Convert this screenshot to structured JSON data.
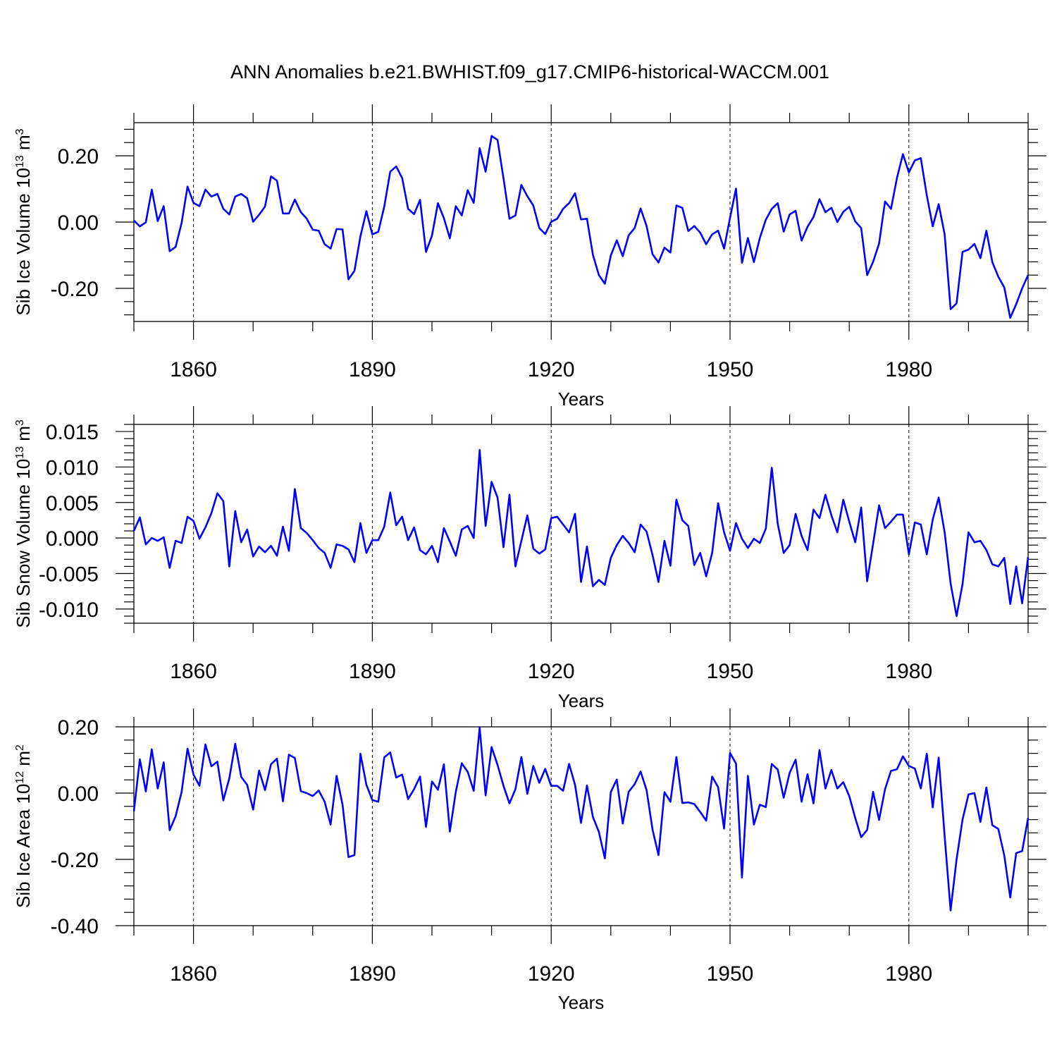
{
  "title": "ANN Anomalies b.e21.BWHIST.f09_g17.CMIP6-historical-WACCM.001",
  "chart_data": [
    {
      "type": "line",
      "title": "ANN Anomalies b.e21.BWHIST.f09_g17.CMIP6-historical-WACCM.001",
      "xlabel": "Years",
      "ylabel": {
        "base": "Sib Ice Volume 10",
        "exp": "13",
        "unit": " m",
        "unit_exp": "3"
      },
      "xlim": [
        1850,
        2000
      ],
      "ylim": [
        -0.3,
        0.3
      ],
      "xticks": [
        1860,
        1890,
        1920,
        1950,
        1980
      ],
      "xtick_labels": [
        "1860",
        "1890",
        "1920",
        "1950",
        "1980"
      ],
      "yticks": [
        -0.2,
        0.0,
        0.2
      ],
      "ytick_labels": [
        "-0.20",
        "0.00",
        "0.20"
      ],
      "grid": "dashed vertical lines at major x ticks",
      "color": "#0000ff",
      "series": [
        {
          "name": "Sib Ice Volume",
          "x_start": 1850,
          "x_step": 1,
          "values": [
            0.005,
            -0.013,
            -0.001,
            0.098,
            0.003,
            0.048,
            -0.088,
            -0.075,
            -0.003,
            0.107,
            0.058,
            0.048,
            0.098,
            0.077,
            0.085,
            0.04,
            0.023,
            0.077,
            0.085,
            0.072,
            0.001,
            0.022,
            0.047,
            0.138,
            0.125,
            0.026,
            0.026,
            0.068,
            0.03,
            0.01,
            -0.023,
            -0.026,
            -0.067,
            -0.08,
            -0.021,
            -0.022,
            -0.173,
            -0.147,
            -0.043,
            0.033,
            -0.037,
            -0.029,
            0.047,
            0.152,
            0.168,
            0.133,
            0.04,
            0.024,
            0.067,
            -0.09,
            -0.041,
            0.057,
            0.012,
            -0.049,
            0.048,
            0.02,
            0.096,
            0.058,
            0.223,
            0.152,
            0.26,
            0.248,
            0.132,
            0.01,
            0.02,
            0.112,
            0.078,
            0.05,
            -0.018,
            -0.036,
            0.001,
            0.01,
            0.04,
            0.057,
            0.087,
            0.008,
            0.01,
            -0.099,
            -0.16,
            -0.186,
            -0.101,
            -0.055,
            -0.103,
            -0.04,
            -0.018,
            0.041,
            -0.012,
            -0.097,
            -0.122,
            -0.077,
            -0.092,
            0.05,
            0.043,
            -0.027,
            -0.012,
            -0.032,
            -0.067,
            -0.037,
            -0.026,
            -0.08,
            0.013,
            0.101,
            -0.123,
            -0.048,
            -0.121,
            -0.048,
            0.007,
            0.04,
            0.057,
            -0.029,
            0.023,
            0.034,
            -0.056,
            -0.014,
            0.015,
            0.069,
            0.03,
            0.043,
            0.0,
            0.031,
            0.046,
            0.002,
            -0.018,
            -0.16,
            -0.12,
            -0.065,
            0.062,
            0.04,
            0.133,
            0.205,
            0.15,
            0.186,
            0.193,
            0.081,
            -0.013,
            0.054,
            -0.037,
            -0.263,
            -0.245,
            -0.09,
            -0.083,
            -0.066,
            -0.109,
            -0.026,
            -0.121,
            -0.165,
            -0.197,
            -0.289,
            -0.248,
            -0.2,
            -0.16
          ]
        }
      ]
    },
    {
      "type": "line",
      "xlabel": "Years",
      "ylabel": {
        "base": "Sib Snow Volume 10",
        "exp": "13",
        "unit": " m",
        "unit_exp": "3"
      },
      "xlim": [
        1850,
        2000
      ],
      "ylim": [
        -0.012,
        0.016
      ],
      "xticks": [
        1860,
        1890,
        1920,
        1950,
        1980
      ],
      "xtick_labels": [
        "1860",
        "1890",
        "1920",
        "1950",
        "1980"
      ],
      "yticks": [
        -0.01,
        -0.005,
        0.0,
        0.005,
        0.01,
        0.015
      ],
      "ytick_labels": [
        "-0.010",
        "-0.005",
        "0.000",
        "0.005",
        "0.010",
        "0.015"
      ],
      "grid": "dashed vertical lines at major x ticks",
      "color": "#0000ff",
      "series": [
        {
          "name": "Sib Snow Volume",
          "x_start": 1850,
          "x_step": 1,
          "values": [
            0.001,
            0.0029,
            -0.0009,
            0.0,
            -0.0004,
            0.0001,
            -0.0042,
            -0.0004,
            -0.0007,
            0.003,
            0.0024,
            -0.0001,
            0.0015,
            0.0035,
            0.0063,
            0.0052,
            -0.004,
            0.0038,
            -0.0006,
            0.0012,
            -0.0026,
            -0.0012,
            -0.002,
            -0.0011,
            -0.0025,
            0.0016,
            -0.0018,
            0.0069,
            0.0014,
            0.0007,
            -0.0003,
            -0.0014,
            -0.0021,
            -0.0042,
            -0.0009,
            -0.0011,
            -0.0016,
            -0.0034,
            0.0021,
            -0.0021,
            -0.0003,
            -0.0003,
            0.0016,
            0.0064,
            0.0018,
            0.003,
            -0.0003,
            0.0015,
            -0.0017,
            -0.0023,
            -0.0011,
            -0.0034,
            0.0014,
            -0.0005,
            -0.0025,
            0.0012,
            0.0017,
            0.0,
            0.0124,
            0.0017,
            0.0079,
            0.0057,
            -0.0013,
            0.0061,
            -0.004,
            -0.0004,
            0.0032,
            -0.0015,
            -0.0022,
            -0.0016,
            0.0028,
            0.003,
            0.0019,
            0.0008,
            0.0034,
            -0.0062,
            -0.0012,
            -0.0068,
            -0.0059,
            -0.0066,
            -0.0028,
            -0.001,
            0.0003,
            -0.0007,
            -0.002,
            0.0019,
            0.0009,
            -0.0024,
            -0.0062,
            -0.0004,
            -0.0039,
            0.0054,
            0.0025,
            0.0017,
            -0.0038,
            -0.0021,
            -0.0054,
            -0.0021,
            0.0049,
            0.0008,
            -0.0018,
            0.0021,
            -0.0001,
            -0.0014,
            -0.0001,
            -0.0007,
            0.0013,
            0.0099,
            0.002,
            -0.0021,
            -0.001,
            0.0034,
            0.0003,
            -0.0017,
            0.004,
            0.0028,
            0.0061,
            0.0032,
            0.0008,
            0.0054,
            0.0023,
            -0.0006,
            0.0043,
            -0.0061,
            -0.0008,
            0.0046,
            0.0014,
            0.0023,
            0.0033,
            0.0033,
            -0.0023,
            0.0022,
            0.0019,
            -0.0023,
            0.0026,
            0.0057,
            0.0008,
            -0.0064,
            -0.011,
            -0.0065,
            0.0008,
            -0.0006,
            -0.0004,
            -0.0017,
            -0.0037,
            -0.004,
            -0.0028,
            -0.0093,
            -0.004,
            -0.0092,
            -0.0027
          ]
        }
      ]
    },
    {
      "type": "line",
      "xlabel": "Years",
      "ylabel": {
        "base": "Sib Ice Area 10",
        "exp": "12",
        "unit": " m",
        "unit_exp": "2"
      },
      "xlim": [
        1850,
        2000
      ],
      "ylim": [
        -0.4,
        0.2
      ],
      "xticks": [
        1860,
        1890,
        1920,
        1950,
        1980
      ],
      "xtick_labels": [
        "1860",
        "1890",
        "1920",
        "1950",
        "1980"
      ],
      "yticks": [
        -0.4,
        -0.2,
        0.0,
        0.2
      ],
      "ytick_labels": [
        "-0.40",
        "-0.20",
        "0.00",
        "0.20"
      ],
      "grid": "dashed vertical lines at major x ticks",
      "color": "#0000ff",
      "series": [
        {
          "name": "Sib Ice Area",
          "x_start": 1850,
          "x_step": 1,
          "values": [
            -0.055,
            0.102,
            0.005,
            0.132,
            0.014,
            0.093,
            -0.112,
            -0.07,
            0.003,
            0.134,
            0.056,
            0.022,
            0.147,
            0.081,
            0.095,
            -0.022,
            0.044,
            0.149,
            0.049,
            0.025,
            -0.05,
            0.068,
            0.009,
            0.087,
            0.104,
            -0.025,
            0.116,
            0.106,
            0.006,
            0.0,
            -0.009,
            0.008,
            -0.026,
            -0.095,
            0.052,
            -0.035,
            -0.193,
            -0.187,
            0.119,
            0.025,
            -0.021,
            -0.026,
            0.108,
            0.123,
            0.047,
            0.056,
            -0.018,
            0.012,
            0.05,
            -0.102,
            0.035,
            0.01,
            0.087,
            -0.116,
            0.004,
            0.09,
            0.064,
            0.007,
            0.198,
            -0.007,
            0.139,
            0.085,
            0.022,
            -0.031,
            0.012,
            0.109,
            -0.002,
            0.082,
            0.031,
            0.073,
            0.022,
            0.022,
            0.007,
            0.088,
            0.025,
            -0.09,
            0.023,
            -0.072,
            -0.117,
            -0.197,
            0.003,
            0.041,
            -0.092,
            0.004,
            0.027,
            0.065,
            0.009,
            -0.11,
            -0.187,
            0.003,
            -0.026,
            0.109,
            -0.03,
            -0.028,
            -0.033,
            -0.057,
            -0.083,
            0.05,
            0.018,
            -0.107,
            0.121,
            0.089,
            -0.255,
            0.052,
            -0.095,
            -0.035,
            -0.042,
            0.088,
            0.071,
            -0.014,
            0.061,
            0.101,
            -0.026,
            0.057,
            -0.031,
            0.13,
            0.014,
            0.07,
            0.014,
            0.033,
            -0.009,
            -0.075,
            -0.133,
            -0.111,
            0.004,
            -0.081,
            0.012,
            0.067,
            0.072,
            0.111,
            0.082,
            0.074,
            0.014,
            0.119,
            -0.043,
            0.107,
            -0.13,
            -0.354,
            -0.2,
            -0.08,
            -0.004,
            0.0,
            -0.087,
            0.017,
            -0.097,
            -0.108,
            -0.188,
            -0.315,
            -0.181,
            -0.175,
            -0.075
          ]
        }
      ]
    }
  ]
}
